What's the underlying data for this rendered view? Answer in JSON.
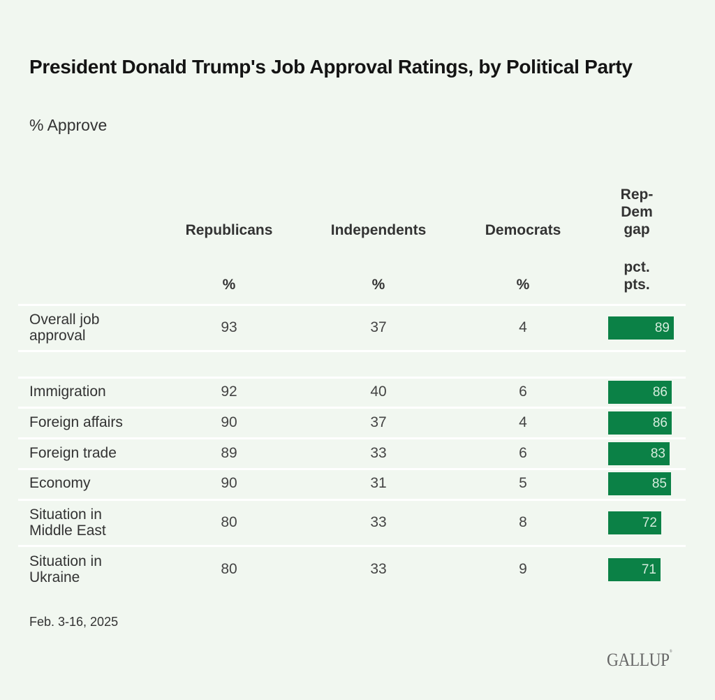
{
  "title": "President Donald Trump's Job Approval Ratings, by Political Party",
  "subtitle": "% Approve",
  "columns": {
    "republicans": "Republicans",
    "independents": "Independents",
    "democrats": "Democrats",
    "gap_line1": "Rep-",
    "gap_line2": "Dem",
    "gap_line3": "gap"
  },
  "units": {
    "percent": "%",
    "gap_line1": "pct.",
    "gap_line2": "pts."
  },
  "colors": {
    "background": "#f1f7f0",
    "bar": "#0b8146",
    "bar_text": "#d6ecdd",
    "rule": "#ffffff"
  },
  "chart_data": {
    "type": "table",
    "title": "President Donald Trump's Job Approval Ratings, by Political Party",
    "subtitle": "% Approve",
    "columns": [
      "Republicans",
      "Independents",
      "Democrats",
      "Rep-Dem gap"
    ],
    "column_units": [
      "%",
      "%",
      "%",
      "pct. pts."
    ],
    "rows": [
      {
        "label": "Overall job approval",
        "label_line1": "Overall job",
        "label_line2": "approval",
        "republicans": "93",
        "independents": "37",
        "democrats": "4",
        "gap": "89"
      },
      {
        "label": "Immigration",
        "label_line1": "Immigration",
        "label_line2": "",
        "republicans": "92",
        "independents": "40",
        "democrats": "6",
        "gap": "86"
      },
      {
        "label": "Foreign affairs",
        "label_line1": "Foreign affairs",
        "label_line2": "",
        "republicans": "90",
        "independents": "37",
        "democrats": "4",
        "gap": "86"
      },
      {
        "label": "Foreign trade",
        "label_line1": "Foreign trade",
        "label_line2": "",
        "republicans": "89",
        "independents": "33",
        "democrats": "6",
        "gap": "83"
      },
      {
        "label": "Economy",
        "label_line1": "Economy",
        "label_line2": "",
        "republicans": "90",
        "independents": "31",
        "democrats": "5",
        "gap": "85"
      },
      {
        "label": "Situation in Middle East",
        "label_line1": "Situation in",
        "label_line2": "Middle East",
        "republicans": "80",
        "independents": "33",
        "democrats": "8",
        "gap": "72"
      },
      {
        "label": "Situation in Ukraine",
        "label_line1": "Situation in",
        "label_line2": "Ukraine",
        "republicans": "80",
        "independents": "33",
        "democrats": "9",
        "gap": "71"
      }
    ],
    "gap_bar_max": 100
  },
  "footer": {
    "date": "Feb. 3-16, 2025",
    "logo": "GALLUP",
    "logo_mark": "®"
  }
}
